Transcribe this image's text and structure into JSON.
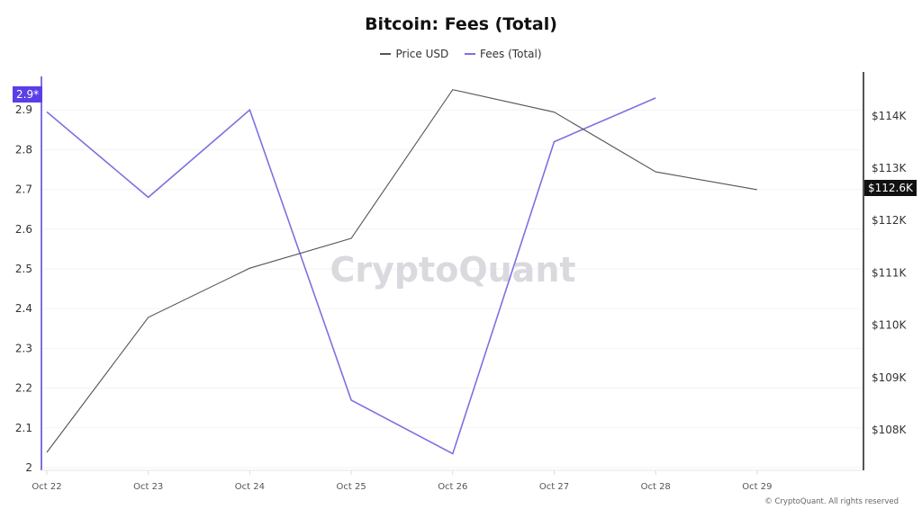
{
  "title": "Bitcoin: Fees (Total)",
  "legend": [
    {
      "label": "Price USD",
      "color": "#555555"
    },
    {
      "label": "Fees (Total)",
      "color": "#7b72e0"
    }
  ],
  "watermark": "CryptoQuant",
  "copyright": "© CryptoQuant. All rights reserved",
  "left_axis_badge": "2.9*",
  "right_axis_badge": "$112.6K",
  "chart_data": {
    "type": "line",
    "title": "Bitcoin: Fees (Total)",
    "xlabel": "",
    "categories": [
      "Oct 22",
      "Oct 23",
      "Oct 24",
      "Oct 25",
      "Oct 26",
      "Oct 27",
      "Oct 28",
      "Oct 29"
    ],
    "series": [
      {
        "name": "Fees (Total)",
        "axis": "left",
        "color": "#7b72e0",
        "values": [
          2.895,
          2.68,
          2.9,
          2.17,
          2.035,
          2.82,
          2.93,
          null
        ]
      },
      {
        "name": "Price USD",
        "axis": "right",
        "color": "#555555",
        "values": [
          107570,
          110150,
          111090,
          111660,
          114500,
          114070,
          112930,
          112590
        ]
      }
    ],
    "left_axis": {
      "ticks": [
        "2",
        "2.1",
        "2.2",
        "2.3",
        "2.4",
        "2.5",
        "2.6",
        "2.7",
        "2.8",
        "2.9"
      ],
      "ylim": [
        2,
        2.95
      ]
    },
    "right_axis": {
      "ticks": [
        "$108K",
        "$109K",
        "$110K",
        "$111K",
        "$112K",
        "$113K",
        "$114K"
      ],
      "ylim": [
        107300,
        114750
      ]
    },
    "grid": true,
    "legend_position": "top"
  }
}
